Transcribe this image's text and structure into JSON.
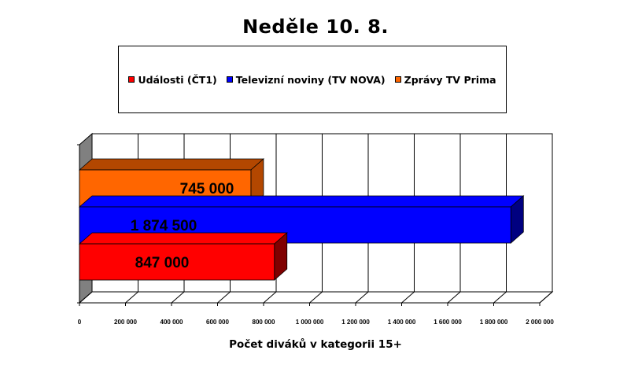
{
  "chart_data": {
    "type": "bar",
    "orientation": "horizontal",
    "title": "Neděle 10. 8.",
    "xlabel": "Počet diváků v kategorii 15+",
    "ylabel": "",
    "xlim": [
      0,
      2000000
    ],
    "xticks": [
      0,
      200000,
      400000,
      600000,
      800000,
      1000000,
      1200000,
      1400000,
      1600000,
      1800000,
      2000000
    ],
    "xtick_labels": [
      "0",
      "200 000",
      "400 000",
      "600 000",
      "800 000",
      "1 000 000",
      "1 200 000",
      "1 400 000",
      "1 600 000",
      "1 800 000",
      "2 000 000"
    ],
    "grid": true,
    "legend_position": "top",
    "series": [
      {
        "name": "Události (ČT1)",
        "value": 847000,
        "label": "847 000",
        "color": "#ff0000",
        "top_color": "#ff0000",
        "side_color": "#800000"
      },
      {
        "name": "Televizní noviny (TV NOVA)",
        "value": 1874500,
        "label": "1 874 500",
        "color": "#0000ff",
        "top_color": "#0000ff",
        "side_color": "#000080"
      },
      {
        "name": "Zprávy TV Prima",
        "value": 745000,
        "label": "745 000",
        "color": "#ff6600",
        "top_color": "#b34700",
        "side_color": "#b34700"
      }
    ]
  }
}
